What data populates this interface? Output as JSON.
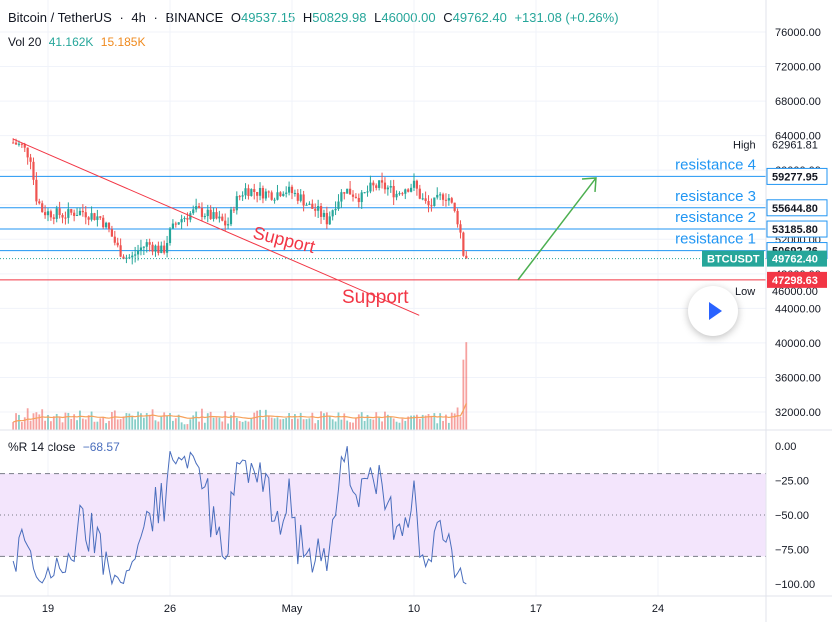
{
  "header": {
    "symbol": "Bitcoin / TetherUS",
    "sep1": "·",
    "interval": "4h",
    "sep2": "·",
    "exchange": "BINANCE",
    "o_label": "O",
    "o_value": "49537.15",
    "h_label": "H",
    "h_value": "50829.98",
    "l_label": "L",
    "l_value": "46000.00",
    "c_label": "C",
    "c_value": "49762.40",
    "change": "+131.08 (+0.26%)"
  },
  "volume_header": {
    "label": "Vol 20",
    "value": "41.162K",
    "ma_value": "15.185K"
  },
  "indicator_header": {
    "label": "%R 14 close",
    "value": "−68.57"
  },
  "colors": {
    "up": "#26a69a",
    "down": "#ef5350",
    "support": "#f23645",
    "resistance": "#2196f3",
    "arrow": "#4caf50",
    "wr_line": "#4a6ebd",
    "wr_band": "#f3e5fc",
    "vol_ma": "#f6a15a",
    "price_tag": "#26a69a",
    "support_tag": "#f23645"
  },
  "chart_data": {
    "type": "candlestick",
    "symbol": "BTCUSDT",
    "interval": "4h",
    "x_ticks": [
      "19",
      "26",
      "May",
      "10",
      "17",
      "24"
    ],
    "y_ticks": [
      "76000.00",
      "72000.00",
      "68000.00",
      "64000.00",
      "60000.00",
      "56000.00",
      "52000.00",
      "48000.00",
      "44000.00",
      "40000.00",
      "36000.00",
      "32000.00"
    ],
    "ylim": [
      30000,
      78000
    ],
    "price_ohlc_anchors": [
      [
        17.0,
        63200
      ],
      [
        17.5,
        62800
      ],
      [
        18.0,
        61500
      ],
      [
        18.3,
        57000
      ],
      [
        18.7,
        55200
      ],
      [
        19.3,
        55000
      ],
      [
        20.0,
        54800
      ],
      [
        20.5,
        55100
      ],
      [
        21.0,
        55200
      ],
      [
        21.5,
        54800
      ],
      [
        22.0,
        54500
      ],
      [
        22.5,
        53000
      ],
      [
        23.0,
        51000
      ],
      [
        23.4,
        50000
      ],
      [
        23.8,
        49800
      ],
      [
        24.2,
        50800
      ],
      [
        24.7,
        51500
      ],
      [
        25.2,
        51000
      ],
      [
        25.6,
        50500
      ],
      [
        26.0,
        52800
      ],
      [
        26.5,
        54200
      ],
      [
        27.0,
        54800
      ],
      [
        27.5,
        55300
      ],
      [
        28.0,
        55000
      ],
      [
        28.5,
        54500
      ],
      [
        29.0,
        54000
      ],
      [
        29.3,
        53600
      ],
      [
        29.7,
        56200
      ],
      [
        30.3,
        57800
      ],
      [
        31.0,
        57500
      ],
      [
        32.0,
        57200
      ],
      [
        32.5,
        57800
      ],
      [
        33.0,
        57400
      ],
      [
        33.5,
        56800
      ],
      [
        34.0,
        55800
      ],
      [
        34.5,
        55200
      ],
      [
        35.0,
        54200
      ],
      [
        35.5,
        56200
      ],
      [
        36.0,
        57800
      ],
      [
        36.5,
        57300
      ],
      [
        37.0,
        56800
      ],
      [
        37.5,
        57900
      ],
      [
        38.0,
        58200
      ],
      [
        38.5,
        57900
      ],
      [
        39.0,
        57300
      ],
      [
        39.5,
        58000
      ],
      [
        40.0,
        58300
      ],
      [
        40.4,
        56800
      ],
      [
        40.8,
        55800
      ],
      [
        41.2,
        56200
      ],
      [
        41.7,
        57200
      ],
      [
        42.0,
        56800
      ],
      [
        42.3,
        55200
      ],
      [
        42.6,
        53800
      ],
      [
        42.8,
        50500
      ],
      [
        43.0,
        49762
      ]
    ],
    "last_price": "49762.40",
    "high_label": "High",
    "high_value": "62961.81",
    "low_label": "Low",
    "low_value": "46000.00",
    "price_tag_label": "BTCUSDT",
    "price_tag_value": "49762.40",
    "support_value": "47298.63",
    "resistance_levels": [
      {
        "name": "resistance 4",
        "value": 59277.95,
        "label": "59277.95"
      },
      {
        "name": "resistance 3",
        "value": 55644.8,
        "label": "55644.80"
      },
      {
        "name": "resistance 2",
        "value": 53185.8,
        "label": "53185.80"
      },
      {
        "name": "resistance 1",
        "value": 50692.26,
        "label": "50692.26"
      }
    ],
    "annotations": {
      "support_horizontal": "Support",
      "support_trendline": "Support"
    },
    "volume": {
      "y_ticks": [
        "40000.00",
        "36000.00",
        "32000.00"
      ]
    },
    "williams_r": {
      "name": "%R 14 close",
      "y_ticks": [
        "0.00",
        "−25.00",
        "−50.00",
        "−75.00",
        "−100.00"
      ],
      "bands": [
        -20,
        -50,
        -80
      ]
    }
  }
}
